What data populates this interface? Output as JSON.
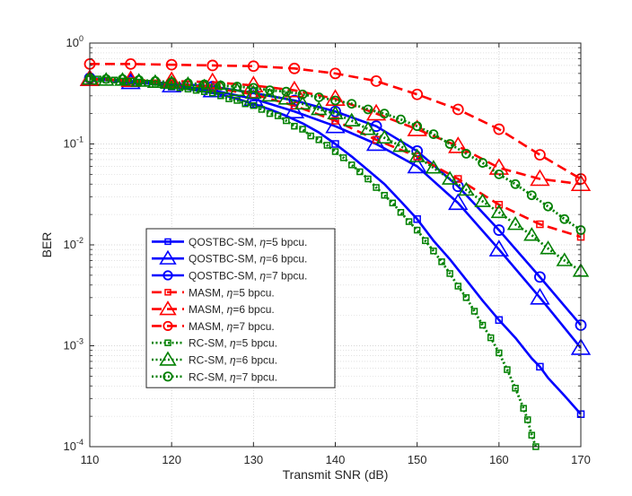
{
  "chart_data": {
    "type": "line",
    "title": "",
    "xlabel": "Transmit SNR (dB)",
    "ylabel": "BER",
    "xlim": [
      110,
      170
    ],
    "ylim": [
      0.0001,
      1
    ],
    "yscale": "log",
    "grid": true,
    "legend_position": "lower-left",
    "x_ticks": [
      {
        "value": 110,
        "label": "110"
      },
      {
        "value": 120,
        "label": "120"
      },
      {
        "value": 130,
        "label": "130"
      },
      {
        "value": 140,
        "label": "140"
      },
      {
        "value": 150,
        "label": "150"
      },
      {
        "value": 160,
        "label": "160"
      },
      {
        "value": 170,
        "label": "170"
      }
    ],
    "y_ticks": [
      {
        "value": 1,
        "base": "10",
        "exp": "0"
      },
      {
        "value": 0.1,
        "base": "10",
        "exp": "-1"
      },
      {
        "value": 0.01,
        "base": "10",
        "exp": "-2"
      },
      {
        "value": 0.001,
        "base": "10",
        "exp": "-3"
      },
      {
        "value": 0.0001,
        "base": "10",
        "exp": "-4"
      }
    ],
    "series": [
      {
        "name": "QOSTBC-SM, η=5 bpcu.",
        "legend_pre": "QOSTBC-SM, ",
        "legend_sym": "η",
        "legend_post": "=5 bpcu.",
        "color": "#0000ff",
        "dash": "solid",
        "marker": "square",
        "marker_every": 5,
        "x": [
          110,
          112,
          114,
          116,
          118,
          120,
          122,
          124,
          126,
          128,
          130,
          132,
          134,
          136,
          138,
          140,
          142,
          144,
          146,
          148,
          150,
          152,
          154,
          156,
          158,
          160,
          162,
          164,
          165,
          166,
          168,
          170
        ],
        "y": [
          0.44,
          0.43,
          0.42,
          0.41,
          0.39,
          0.37,
          0.35,
          0.33,
          0.31,
          0.28,
          0.25,
          0.22,
          0.19,
          0.16,
          0.13,
          0.1,
          0.075,
          0.055,
          0.04,
          0.027,
          0.018,
          0.011,
          0.0072,
          0.0045,
          0.0028,
          0.0018,
          0.0012,
          0.00075,
          0.00062,
          0.00048,
          0.00032,
          0.00021
        ]
      },
      {
        "name": "QOSTBC-SM, η=6 bpcu.",
        "legend_pre": "QOSTBC-SM, ",
        "legend_sym": "η",
        "legend_post": "=6 bpcu.",
        "color": "#0000ff",
        "dash": "solid",
        "marker": "triangle",
        "marker_every": 5,
        "x": [
          110,
          115,
          120,
          125,
          130,
          135,
          140,
          145,
          150,
          155,
          160,
          165,
          170
        ],
        "y": [
          0.44,
          0.41,
          0.38,
          0.34,
          0.28,
          0.21,
          0.15,
          0.1,
          0.06,
          0.026,
          0.009,
          0.003,
          0.00095
        ]
      },
      {
        "name": "QOSTBC-SM, η=7 bpcu.",
        "legend_pre": "QOSTBC-SM, ",
        "legend_sym": "η",
        "legend_post": "=7 bpcu.",
        "color": "#0000ff",
        "dash": "solid",
        "marker": "circle",
        "marker_every": 5,
        "x": [
          110,
          115,
          120,
          125,
          130,
          135,
          140,
          145,
          150,
          155,
          160,
          165,
          170
        ],
        "y": [
          0.45,
          0.42,
          0.4,
          0.37,
          0.32,
          0.27,
          0.21,
          0.15,
          0.085,
          0.038,
          0.014,
          0.0048,
          0.0016
        ]
      },
      {
        "name": "MASM, η=5 bpcu.",
        "legend_pre": "MASM, ",
        "legend_sym": "η",
        "legend_post": "=5 bpcu.",
        "color": "#ff0000",
        "dash": "dashed",
        "marker": "square",
        "marker_every": 5,
        "x": [
          110,
          115,
          120,
          125,
          130,
          135,
          140,
          145,
          150,
          155,
          160,
          165,
          170
        ],
        "y": [
          0.44,
          0.42,
          0.4,
          0.36,
          0.31,
          0.24,
          0.17,
          0.11,
          0.075,
          0.045,
          0.025,
          0.016,
          0.012
        ]
      },
      {
        "name": "MASM, η=6 bpcu.",
        "legend_pre": "MASM, ",
        "legend_sym": "η",
        "legend_post": "=6 bpcu.",
        "color": "#ff0000",
        "dash": "dashed",
        "marker": "triangle",
        "marker_every": 5,
        "x": [
          110,
          115,
          120,
          125,
          130,
          135,
          140,
          145,
          150,
          155,
          160,
          165,
          170
        ],
        "y": [
          0.44,
          0.43,
          0.42,
          0.41,
          0.38,
          0.34,
          0.28,
          0.2,
          0.14,
          0.095,
          0.058,
          0.045,
          0.04
        ]
      },
      {
        "name": "MASM, η=7 bpcu.",
        "legend_pre": "MASM, ",
        "legend_sym": "η",
        "legend_post": "=7 bpcu.",
        "color": "#ff0000",
        "dash": "dashed",
        "marker": "circle",
        "marker_every": 5,
        "x": [
          110,
          115,
          120,
          125,
          130,
          135,
          140,
          145,
          150,
          155,
          160,
          165,
          170
        ],
        "y": [
          0.62,
          0.62,
          0.61,
          0.6,
          0.59,
          0.56,
          0.5,
          0.42,
          0.31,
          0.22,
          0.14,
          0.078,
          0.045
        ]
      },
      {
        "name": "RC-SM, η=5 bpcu.",
        "legend_pre": "RC-SM, ",
        "legend_sym": "η",
        "legend_post": "=5 bpcu.",
        "color": "#008000",
        "dash": "dotted",
        "marker": "square",
        "marker_every": 1,
        "x": [
          110,
          111,
          112,
          113,
          114,
          115,
          116,
          117,
          118,
          119,
          120,
          121,
          122,
          123,
          124,
          125,
          126,
          127,
          128,
          129,
          130,
          131,
          132,
          133,
          134,
          135,
          136,
          137,
          138,
          139,
          140,
          141,
          142,
          143,
          144,
          145,
          146,
          147,
          148,
          149,
          150,
          151,
          152,
          153,
          154,
          155,
          156,
          157,
          158,
          159,
          160,
          161,
          162,
          163,
          163.5,
          164,
          164.5
        ],
        "y": [
          0.44,
          0.44,
          0.43,
          0.43,
          0.42,
          0.42,
          0.41,
          0.4,
          0.39,
          0.38,
          0.37,
          0.36,
          0.35,
          0.34,
          0.33,
          0.32,
          0.3,
          0.28,
          0.27,
          0.25,
          0.24,
          0.22,
          0.2,
          0.19,
          0.17,
          0.15,
          0.14,
          0.12,
          0.11,
          0.097,
          0.084,
          0.073,
          0.062,
          0.053,
          0.045,
          0.037,
          0.031,
          0.026,
          0.021,
          0.017,
          0.014,
          0.011,
          0.0087,
          0.0068,
          0.0052,
          0.0039,
          0.003,
          0.0022,
          0.0016,
          0.0012,
          0.00085,
          0.00058,
          0.00038,
          0.00024,
          0.000185,
          0.00013,
          0.0001
        ]
      },
      {
        "name": "RC-SM, η=6 bpcu.",
        "legend_pre": "RC-SM, ",
        "legend_sym": "η",
        "legend_post": "=6 bpcu.",
        "color": "#008000",
        "dash": "dotted",
        "marker": "triangle",
        "marker_every": 1,
        "x": [
          110,
          112,
          114,
          116,
          118,
          120,
          122,
          124,
          126,
          128,
          130,
          132,
          134,
          136,
          138,
          140,
          142,
          144,
          146,
          148,
          150,
          152,
          154,
          156,
          158,
          160,
          162,
          164,
          166,
          168,
          170
        ],
        "y": [
          0.44,
          0.43,
          0.43,
          0.42,
          0.41,
          0.4,
          0.39,
          0.37,
          0.36,
          0.34,
          0.32,
          0.3,
          0.28,
          0.25,
          0.22,
          0.2,
          0.17,
          0.14,
          0.115,
          0.095,
          0.075,
          0.058,
          0.045,
          0.035,
          0.027,
          0.021,
          0.016,
          0.0125,
          0.0092,
          0.007,
          0.0055
        ]
      },
      {
        "name": "RC-SM, η=7 bpcu.",
        "legend_pre": "RC-SM, ",
        "legend_sym": "η",
        "legend_post": "=7 bpcu.",
        "color": "#008000",
        "dash": "dotted",
        "marker": "circle",
        "marker_every": 1,
        "x": [
          110,
          112,
          114,
          116,
          118,
          120,
          122,
          124,
          126,
          128,
          130,
          132,
          134,
          136,
          138,
          140,
          142,
          144,
          146,
          148,
          150,
          152,
          154,
          156,
          158,
          160,
          162,
          164,
          166,
          168,
          170
        ],
        "y": [
          0.45,
          0.44,
          0.44,
          0.43,
          0.42,
          0.41,
          0.4,
          0.39,
          0.38,
          0.37,
          0.36,
          0.34,
          0.33,
          0.31,
          0.29,
          0.27,
          0.25,
          0.22,
          0.2,
          0.175,
          0.15,
          0.125,
          0.1,
          0.08,
          0.065,
          0.05,
          0.04,
          0.031,
          0.024,
          0.018,
          0.014
        ]
      }
    ]
  }
}
